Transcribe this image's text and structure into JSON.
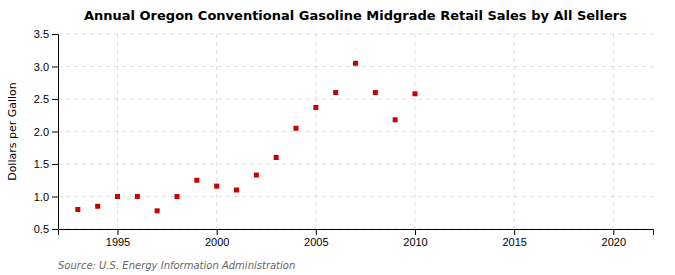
{
  "chart_data": {
    "type": "scatter",
    "title": "Annual Oregon Conventional Gasoline Midgrade Retail Sales by All Sellers",
    "ylabel": "Dollars per Gallon",
    "source": "Source: U.S. Energy Information Administration",
    "x": [
      1993,
      1994,
      1995,
      1996,
      1997,
      1998,
      1999,
      2000,
      2001,
      2002,
      2003,
      2004,
      2005,
      2006,
      2007,
      2008,
      2009,
      2010
    ],
    "values": [
      0.8,
      0.85,
      1.0,
      1.0,
      0.78,
      1.0,
      1.25,
      1.16,
      1.1,
      1.33,
      1.6,
      2.05,
      2.37,
      2.6,
      3.05,
      2.6,
      2.18,
      2.58
    ],
    "color": "#cc0000",
    "marker": "square",
    "xlim": [
      1992,
      2022
    ],
    "ylim": [
      0.5,
      3.5
    ],
    "xticks": [
      1995,
      2000,
      2005,
      2010,
      2015,
      2020
    ],
    "yticks": [
      0.5,
      {
        "value": 1.0,
        "label": "1.0"
      },
      1.5,
      {
        "value": 2.0,
        "label": "2.0"
      },
      2.5,
      {
        "value": 3.0,
        "label": "3.0"
      },
      3.5
    ],
    "grid": true
  }
}
